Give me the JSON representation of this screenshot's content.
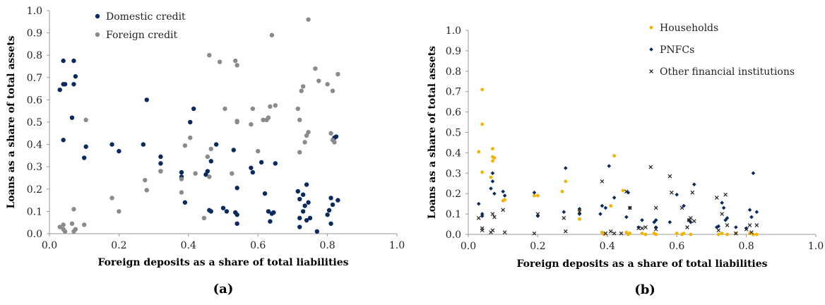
{
  "chart_data": [
    {
      "type": "scatter",
      "panel_label": "(a)",
      "xlabel": "Foreign deposits as a share of total liabilities",
      "ylabel": "Loans as a share of total assets",
      "xlim": [
        0,
        1.0
      ],
      "ylim": [
        0,
        1.0
      ],
      "x_ticks": [
        "0.0",
        "0.2",
        "0.4",
        "0.6",
        "0.8",
        "1.0"
      ],
      "y_ticks": [
        "0.0",
        "0.1",
        "0.2",
        "0.3",
        "0.4",
        "0.5",
        "0.6",
        "0.7",
        "0.8",
        "0.9",
        "1.0"
      ],
      "grid": false,
      "legend_position": "top-left",
      "series": [
        {
          "name": "Domestic credit",
          "color": "#0a2a5e",
          "marker": "circle",
          "points": [
            [
              0.03,
              0.645
            ],
            [
              0.04,
              0.67
            ],
            [
              0.04,
              0.775
            ],
            [
              0.04,
              0.42
            ],
            [
              0.045,
              0.67
            ],
            [
              0.065,
              0.52
            ],
            [
              0.07,
              0.775
            ],
            [
              0.07,
              0.67
            ],
            [
              0.075,
              0.705
            ],
            [
              0.1,
              0.34
            ],
            [
              0.105,
              0.39
            ],
            [
              0.18,
              0.4
            ],
            [
              0.2,
              0.37
            ],
            [
              0.27,
              0.4
            ],
            [
              0.28,
              0.6
            ],
            [
              0.32,
              0.345
            ],
            [
              0.32,
              0.315
            ],
            [
              0.32,
              0.28
            ],
            [
              0.38,
              0.275
            ],
            [
              0.38,
              0.255
            ],
            [
              0.39,
              0.14
            ],
            [
              0.405,
              0.5
            ],
            [
              0.415,
              0.56
            ],
            [
              0.45,
              0.265
            ],
            [
              0.455,
              0.28
            ],
            [
              0.46,
              0.105
            ],
            [
              0.465,
              0.1
            ],
            [
              0.465,
              0.325
            ],
            [
              0.48,
              0.4
            ],
            [
              0.5,
              0.115
            ],
            [
              0.51,
              0.1
            ],
            [
              0.53,
              0.375
            ],
            [
              0.535,
              0.095
            ],
            [
              0.54,
              0.085
            ],
            [
              0.54,
              0.045
            ],
            [
              0.54,
              0.205
            ],
            [
              0.58,
              0.295
            ],
            [
              0.585,
              0.275
            ],
            [
              0.61,
              0.32
            ],
            [
              0.62,
              0.18
            ],
            [
              0.63,
              0.1
            ],
            [
              0.635,
              0.055
            ],
            [
              0.64,
              0.09
            ],
            [
              0.645,
              0.095
            ],
            [
              0.65,
              0.315
            ],
            [
              0.715,
              0.19
            ],
            [
              0.72,
              0.07
            ],
            [
              0.72,
              0.03
            ],
            [
              0.72,
              0.155
            ],
            [
              0.73,
              0.175
            ],
            [
              0.73,
              0.1
            ],
            [
              0.735,
              0.125
            ],
            [
              0.74,
              0.06
            ],
            [
              0.74,
              0.22
            ],
            [
              0.745,
              0.14
            ],
            [
              0.75,
              0.07
            ],
            [
              0.77,
              0.01
            ],
            [
              0.8,
              0.085
            ],
            [
              0.805,
              0.105
            ],
            [
              0.81,
              0.045
            ],
            [
              0.81,
              0.16
            ],
            [
              0.815,
              0.13
            ],
            [
              0.82,
              0.43
            ],
            [
              0.825,
              0.435
            ],
            [
              0.83,
              0.15
            ]
          ]
        },
        {
          "name": "Foreign credit",
          "color": "#8a8a8a",
          "marker": "circle",
          "points": [
            [
              0.03,
              0.03
            ],
            [
              0.04,
              0.02
            ],
            [
              0.04,
              0.04
            ],
            [
              0.045,
              0.01
            ],
            [
              0.065,
              0.045
            ],
            [
              0.07,
              0.01
            ],
            [
              0.07,
              0.11
            ],
            [
              0.075,
              0.02
            ],
            [
              0.1,
              0.04
            ],
            [
              0.105,
              0.51
            ],
            [
              0.18,
              0.16
            ],
            [
              0.2,
              0.1
            ],
            [
              0.275,
              0.24
            ],
            [
              0.28,
              0.195
            ],
            [
              0.32,
              0.28
            ],
            [
              0.38,
              0.185
            ],
            [
              0.38,
              0.245
            ],
            [
              0.39,
              0.395
            ],
            [
              0.405,
              0.43
            ],
            [
              0.42,
              0.27
            ],
            [
              0.445,
              0.07
            ],
            [
              0.455,
              0.345
            ],
            [
              0.46,
              0.255
            ],
            [
              0.46,
              0.8
            ],
            [
              0.465,
              0.38
            ],
            [
              0.49,
              0.77
            ],
            [
              0.505,
              0.56
            ],
            [
              0.525,
              0.27
            ],
            [
              0.535,
              0.775
            ],
            [
              0.54,
              0.755
            ],
            [
              0.54,
              0.505
            ],
            [
              0.54,
              0.5
            ],
            [
              0.58,
              0.49
            ],
            [
              0.585,
              0.56
            ],
            [
              0.6,
              0.37
            ],
            [
              0.615,
              0.51
            ],
            [
              0.625,
              0.51
            ],
            [
              0.63,
              0.52
            ],
            [
              0.635,
              0.57
            ],
            [
              0.64,
              0.89
            ],
            [
              0.65,
              0.575
            ],
            [
              0.715,
              0.56
            ],
            [
              0.72,
              0.51
            ],
            [
              0.72,
              0.365
            ],
            [
              0.725,
              0.64
            ],
            [
              0.73,
              0.66
            ],
            [
              0.735,
              0.41
            ],
            [
              0.74,
              0.44
            ],
            [
              0.745,
              0.455
            ],
            [
              0.745,
              0.96
            ],
            [
              0.765,
              0.74
            ],
            [
              0.775,
              0.685
            ],
            [
              0.8,
              0.67
            ],
            [
              0.81,
              0.45
            ],
            [
              0.815,
              0.64
            ],
            [
              0.815,
              0.42
            ],
            [
              0.82,
              0.41
            ],
            [
              0.83,
              0.715
            ]
          ]
        }
      ]
    },
    {
      "type": "scatter",
      "panel_label": "(b)",
      "xlabel": "Foreign deposits as a share of total liabilities",
      "ylabel": "Loans as a share of total assets",
      "xlim": [
        0,
        1.0
      ],
      "ylim": [
        0,
        1.0
      ],
      "x_ticks": [
        "0.0",
        "0.2",
        "0.4",
        "0.6",
        "0.8",
        "1.0"
      ],
      "y_ticks": [
        "0.0",
        "0.1",
        "0.2",
        "0.3",
        "0.4",
        "0.5",
        "0.6",
        "0.7",
        "0.8",
        "0.9",
        "1.0"
      ],
      "grid": false,
      "legend_position": "top-right",
      "series": [
        {
          "name": "Households",
          "color": "#f0b400",
          "marker": "circle",
          "points": [
            [
              0.03,
              0.405
            ],
            [
              0.04,
              0.71
            ],
            [
              0.04,
              0.54
            ],
            [
              0.04,
              0.305
            ],
            [
              0.07,
              0.42
            ],
            [
              0.075,
              0.375
            ],
            [
              0.07,
              0.38
            ],
            [
              0.065,
              0.28
            ],
            [
              0.07,
              0.36
            ],
            [
              0.1,
              0.165
            ],
            [
              0.105,
              0.17
            ],
            [
              0.19,
              0.19
            ],
            [
              0.2,
              0.19
            ],
            [
              0.27,
              0.21
            ],
            [
              0.28,
              0.26
            ],
            [
              0.32,
              0.12
            ],
            [
              0.32,
              0.075
            ],
            [
              0.385,
              0.01
            ],
            [
              0.39,
              0.0
            ],
            [
              0.41,
              0.14
            ],
            [
              0.42,
              0.385
            ],
            [
              0.445,
              0.215
            ],
            [
              0.455,
              0.01
            ],
            [
              0.46,
              0.0
            ],
            [
              0.465,
              0.005
            ],
            [
              0.5,
              0.005
            ],
            [
              0.51,
              0.0
            ],
            [
              0.535,
              0.005
            ],
            [
              0.54,
              0.0
            ],
            [
              0.6,
              0.005
            ],
            [
              0.615,
              0.0
            ],
            [
              0.62,
              0.005
            ],
            [
              0.64,
              0.0
            ],
            [
              0.72,
              0.0
            ],
            [
              0.73,
              0.005
            ],
            [
              0.745,
              0.0
            ],
            [
              0.77,
              0.005
            ],
            [
              0.81,
              0.005
            ],
            [
              0.82,
              0.0
            ],
            [
              0.83,
              0.0
            ]
          ]
        },
        {
          "name": "PNFCs",
          "color": "#0a2a5e",
          "marker": "diamond",
          "points": [
            [
              0.03,
              0.15
            ],
            [
              0.04,
              0.1
            ],
            [
              0.04,
              0.09
            ],
            [
              0.065,
              0.225
            ],
            [
              0.07,
              0.26
            ],
            [
              0.075,
              0.2
            ],
            [
              0.07,
              0.3
            ],
            [
              0.1,
              0.21
            ],
            [
              0.105,
              0.19
            ],
            [
              0.19,
              0.205
            ],
            [
              0.2,
              0.09
            ],
            [
              0.275,
              0.11
            ],
            [
              0.28,
              0.325
            ],
            [
              0.32,
              0.125
            ],
            [
              0.32,
              0.1
            ],
            [
              0.38,
              0.1
            ],
            [
              0.385,
              0.14
            ],
            [
              0.395,
              0.13
            ],
            [
              0.405,
              0.335
            ],
            [
              0.42,
              0.18
            ],
            [
              0.455,
              0.085
            ],
            [
              0.46,
              0.205
            ],
            [
              0.465,
              0.13
            ],
            [
              0.49,
              0.035
            ],
            [
              0.5,
              0.07
            ],
            [
              0.535,
              0.06
            ],
            [
              0.54,
              0.07
            ],
            [
              0.54,
              0.035
            ],
            [
              0.58,
              0.06
            ],
            [
              0.6,
              0.195
            ],
            [
              0.62,
              0.14
            ],
            [
              0.635,
              0.07
            ],
            [
              0.64,
              0.06
            ],
            [
              0.65,
              0.245
            ],
            [
              0.715,
              0.035
            ],
            [
              0.72,
              0.04
            ],
            [
              0.73,
              0.155
            ],
            [
              0.735,
              0.13
            ],
            [
              0.74,
              0.07
            ],
            [
              0.745,
              0.08
            ],
            [
              0.77,
              0.035
            ],
            [
              0.8,
              0.03
            ],
            [
              0.81,
              0.12
            ],
            [
              0.815,
              0.085
            ],
            [
              0.82,
              0.3
            ],
            [
              0.83,
              0.11
            ]
          ]
        },
        {
          "name": "Other financial institutions",
          "color": "#222222",
          "marker": "x",
          "points": [
            [
              0.03,
              0.08
            ],
            [
              0.04,
              0.03
            ],
            [
              0.04,
              0.02
            ],
            [
              0.065,
              0.01
            ],
            [
              0.07,
              0.1
            ],
            [
              0.075,
              0.085
            ],
            [
              0.07,
              0.02
            ],
            [
              0.1,
              0.12
            ],
            [
              0.105,
              0.01
            ],
            [
              0.19,
              0.005
            ],
            [
              0.2,
              0.1
            ],
            [
              0.275,
              0.08
            ],
            [
              0.28,
              0.015
            ],
            [
              0.32,
              0.11
            ],
            [
              0.385,
              0.26
            ],
            [
              0.395,
              0.005
            ],
            [
              0.41,
              0.015
            ],
            [
              0.42,
              0.005
            ],
            [
              0.44,
              0.005
            ],
            [
              0.455,
              0.21
            ],
            [
              0.465,
              0.13
            ],
            [
              0.49,
              0.03
            ],
            [
              0.5,
              0.03
            ],
            [
              0.51,
              0.035
            ],
            [
              0.525,
              0.33
            ],
            [
              0.54,
              0.13
            ],
            [
              0.54,
              0.025
            ],
            [
              0.58,
              0.285
            ],
            [
              0.585,
              0.205
            ],
            [
              0.615,
              0.13
            ],
            [
              0.63,
              0.035
            ],
            [
              0.635,
              0.07
            ],
            [
              0.64,
              0.08
            ],
            [
              0.645,
              0.205
            ],
            [
              0.65,
              0.065
            ],
            [
              0.715,
              0.18
            ],
            [
              0.72,
              0.02
            ],
            [
              0.73,
              0.1
            ],
            [
              0.74,
              0.195
            ],
            [
              0.745,
              0.045
            ],
            [
              0.77,
              0.005
            ],
            [
              0.8,
              0.025
            ],
            [
              0.81,
              0.045
            ],
            [
              0.815,
              0.01
            ],
            [
              0.83,
              0.045
            ]
          ]
        }
      ]
    }
  ]
}
